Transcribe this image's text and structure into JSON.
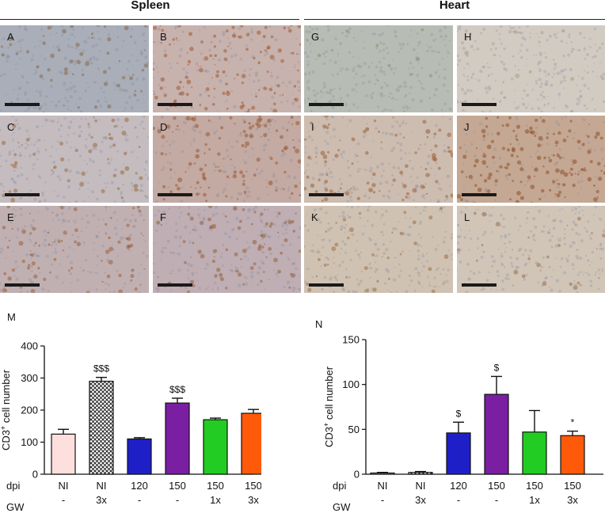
{
  "headers": {
    "spleen": "Spleen",
    "heart": "Heart"
  },
  "panels": [
    {
      "label": "A",
      "tint": "#a9aeb9",
      "stain": "#8a6a48",
      "density": 0.18
    },
    {
      "label": "B",
      "tint": "#c7b2ae",
      "stain": "#a25a2e",
      "density": 0.45
    },
    {
      "label": "G",
      "tint": "#b7bcb4",
      "stain": "#8c8c70",
      "density": 0.05
    },
    {
      "label": "H",
      "tint": "#d2cbc2",
      "stain": "#b09a80",
      "density": 0.03
    },
    {
      "label": "C",
      "tint": "#c4bcbf",
      "stain": "#9c6a3e",
      "density": 0.22
    },
    {
      "label": "D",
      "tint": "#c3aaa3",
      "stain": "#9a5530",
      "density": 0.42
    },
    {
      "label": "I",
      "tint": "#cdbcb0",
      "stain": "#9a6038",
      "density": 0.3
    },
    {
      "label": "J",
      "tint": "#c4a894",
      "stain": "#8f4f28",
      "density": 0.55
    },
    {
      "label": "E",
      "tint": "#c0b0b2",
      "stain": "#9a6038",
      "density": 0.3
    },
    {
      "label": "F",
      "tint": "#bfaeb3",
      "stain": "#94603a",
      "density": 0.32
    },
    {
      "label": "K",
      "tint": "#d0c2b2",
      "stain": "#9a7048",
      "density": 0.12
    },
    {
      "label": "L",
      "tint": "#d1c5b8",
      "stain": "#9a7048",
      "density": 0.1
    }
  ],
  "chart_data": [
    {
      "panel": "M",
      "type": "bar",
      "ylabel_main": "CD3",
      "ylabel_sup": "+",
      "ylabel_rest": " cell number",
      "ylim": [
        0,
        400
      ],
      "yticks": [
        0,
        100,
        200,
        300,
        400
      ],
      "row_label_dpi": "dpi",
      "row_label_gw": "GW",
      "bars": [
        {
          "dpi": "NI",
          "gw": "-",
          "value": 125,
          "err": 15,
          "color": "#fde0dd",
          "hatch": false,
          "annot": ""
        },
        {
          "dpi": "NI",
          "gw": "3x",
          "value": 290,
          "err": 12,
          "color": "#ffffff",
          "hatch": true,
          "annot": "$$$"
        },
        {
          "dpi": "120",
          "gw": "-",
          "value": 110,
          "err": 4,
          "color": "#1f1fc8",
          "hatch": false,
          "annot": ""
        },
        {
          "dpi": "150",
          "gw": "-",
          "value": 222,
          "err": 15,
          "color": "#7a1fa2",
          "hatch": false,
          "annot": "$$$"
        },
        {
          "dpi": "150",
          "gw": "1x",
          "value": 170,
          "err": 5,
          "color": "#22cc22",
          "hatch": false,
          "annot": ""
        },
        {
          "dpi": "150",
          "gw": "3x",
          "value": 190,
          "err": 12,
          "color": "#ff5a0a",
          "hatch": false,
          "annot": ""
        }
      ]
    },
    {
      "panel": "N",
      "type": "bar",
      "ylabel_main": "CD3",
      "ylabel_sup": "+",
      "ylabel_rest": " cell number",
      "ylim": [
        0,
        150
      ],
      "yticks": [
        0,
        50,
        100,
        150
      ],
      "row_label_dpi": "dpi",
      "row_label_gw": "GW",
      "bars": [
        {
          "dpi": "NI",
          "gw": "-",
          "value": 1,
          "err": 1,
          "color": "#fde0dd",
          "hatch": false,
          "annot": ""
        },
        {
          "dpi": "NI",
          "gw": "3x",
          "value": 2,
          "err": 1,
          "color": "#ffffff",
          "hatch": true,
          "annot": ""
        },
        {
          "dpi": "120",
          "gw": "-",
          "value": 46,
          "err": 12,
          "color": "#1f1fc8",
          "hatch": false,
          "annot": "$"
        },
        {
          "dpi": "150",
          "gw": "-",
          "value": 89,
          "err": 20,
          "color": "#7a1fa2",
          "hatch": false,
          "annot": "$"
        },
        {
          "dpi": "150",
          "gw": "1x",
          "value": 47,
          "err": 24,
          "color": "#22cc22",
          "hatch": false,
          "annot": ""
        },
        {
          "dpi": "150",
          "gw": "3x",
          "value": 43,
          "err": 5,
          "color": "#ff5a0a",
          "hatch": false,
          "annot": "*"
        }
      ]
    }
  ]
}
